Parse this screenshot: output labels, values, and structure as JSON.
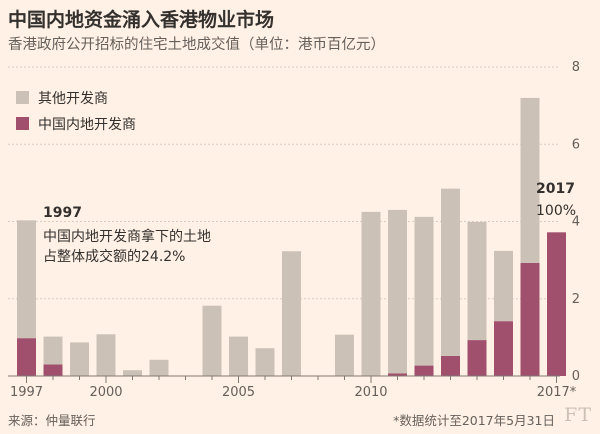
{
  "title": "中国内地资金涌入香港物业市场",
  "subtitle": "香港政府公开招标的住宅土地成交值（单位：港币百亿元）",
  "source": "来源：仲量联行",
  "footnote": "*数据统计至2017年5月31日",
  "logo": "FT",
  "colors": {
    "other": "#ccc1b7",
    "china": "#a0506c",
    "grid": "#d9cdc3",
    "background": "#fff1e5"
  },
  "chart_data": {
    "type": "bar",
    "stacked": true,
    "years": [
      1997,
      1998,
      1999,
      2000,
      2001,
      2002,
      2003,
      2004,
      2005,
      2006,
      2007,
      2008,
      2009,
      2010,
      2011,
      2012,
      2013,
      2014,
      2015,
      2016,
      2017
    ],
    "series": [
      {
        "name": "其他开发商",
        "values": [
          3.05,
          0.72,
          0.87,
          1.08,
          0.15,
          0.42,
          0,
          1.82,
          1.02,
          0.72,
          3.23,
          0,
          1.07,
          4.25,
          4.23,
          3.85,
          4.33,
          3.06,
          1.82,
          4.27,
          0
        ]
      },
      {
        "name": "中国内地开发商",
        "values": [
          0.98,
          0.3,
          0,
          0,
          0,
          0,
          0,
          0,
          0,
          0,
          0,
          0,
          0,
          0,
          0.07,
          0.27,
          0.52,
          0.93,
          1.42,
          2.93,
          3.72
        ]
      }
    ],
    "x_tick_labels": [
      "1997",
      "2000",
      "2005",
      "2010",
      "2017*"
    ],
    "x_tick_years": [
      1997,
      2000,
      2005,
      2010,
      2017
    ],
    "y_ticks": [
      0,
      2,
      4,
      6,
      8
    ],
    "ylim": [
      0,
      8
    ],
    "grid": true,
    "y_axis_side": "right",
    "legend_position": "top-left",
    "annotations": [
      {
        "title": "1997",
        "lines": [
          "中国内地开发商拿下的土地",
          "占整体成交额的24.2%"
        ]
      },
      {
        "title": "2017",
        "lines": [
          "100%"
        ]
      }
    ]
  }
}
